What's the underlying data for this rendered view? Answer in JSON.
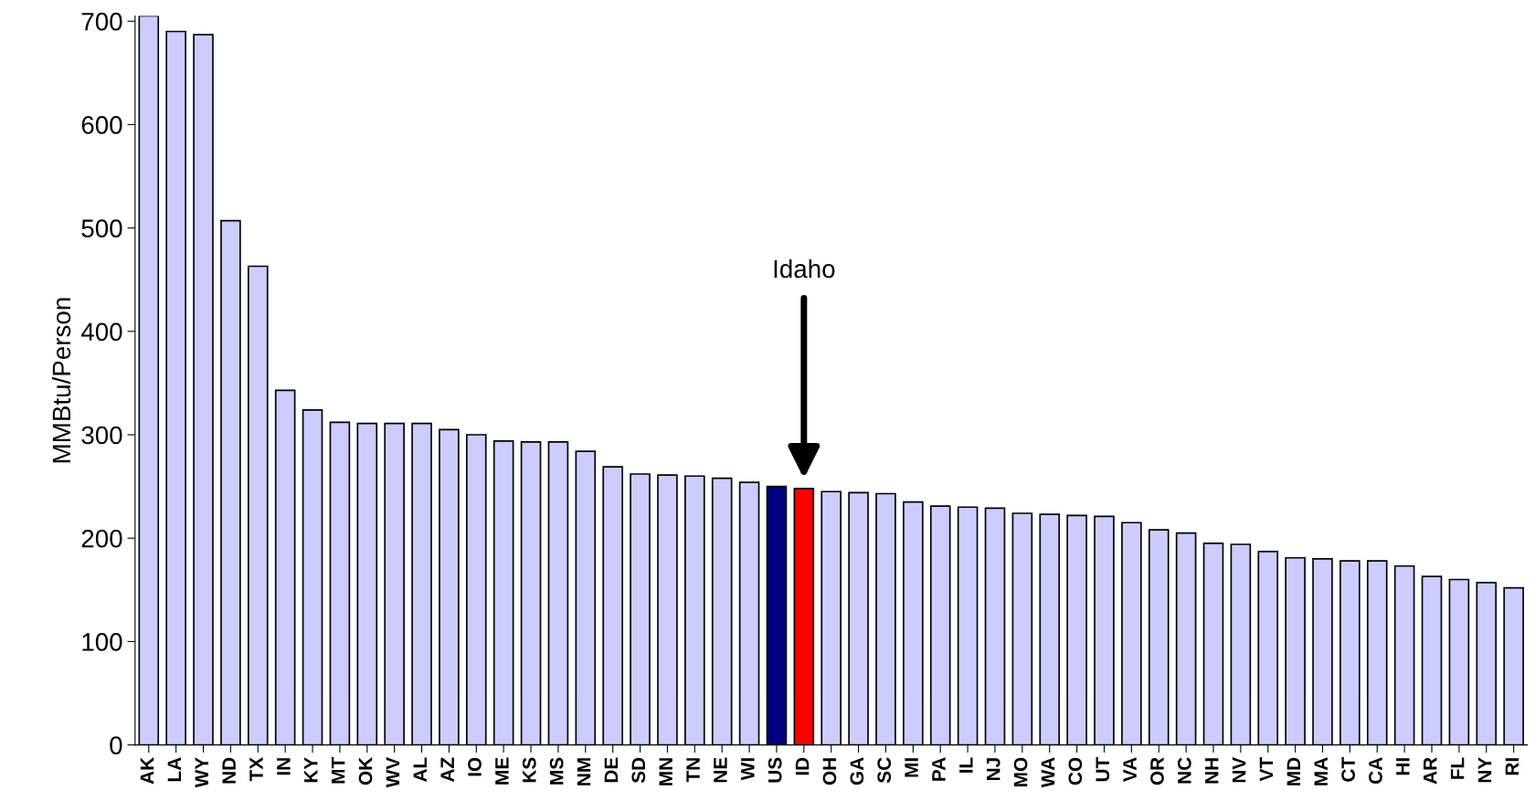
{
  "chart_data": {
    "type": "bar",
    "ylabel": "MMBtu/Person",
    "categories": [
      "AK",
      "LA",
      "WY",
      "ND",
      "TX",
      "IN",
      "KY",
      "MT",
      "OK",
      "WV",
      "AL",
      "AZ",
      "IO",
      "ME",
      "KS",
      "MS",
      "NM",
      "DE",
      "SD",
      "MN",
      "TN",
      "NE",
      "WI",
      "US",
      "ID",
      "OH",
      "GA",
      "SC",
      "MI",
      "PA",
      "IL",
      "NJ",
      "MO",
      "WA",
      "CO",
      "UT",
      "VA",
      "OR",
      "NC",
      "NH",
      "NV",
      "VT",
      "MD",
      "MA",
      "CT",
      "CA",
      "HI",
      "AR",
      "FL",
      "NY",
      "RI"
    ],
    "values": [
      705,
      690,
      687,
      507,
      463,
      343,
      324,
      312,
      311,
      311,
      311,
      305,
      300,
      294,
      293,
      293,
      284,
      269,
      262,
      261,
      260,
      258,
      254,
      250,
      248,
      245,
      244,
      243,
      235,
      231,
      230,
      229,
      224,
      223,
      222,
      221,
      215,
      208,
      205,
      195,
      194,
      187,
      181,
      180,
      178,
      178,
      173,
      163,
      160,
      157,
      152
    ],
    "colors": [
      "#ccccff",
      "#ccccff",
      "#ccccff",
      "#ccccff",
      "#ccccff",
      "#ccccff",
      "#ccccff",
      "#ccccff",
      "#ccccff",
      "#ccccff",
      "#ccccff",
      "#ccccff",
      "#ccccff",
      "#ccccff",
      "#ccccff",
      "#ccccff",
      "#ccccff",
      "#ccccff",
      "#ccccff",
      "#ccccff",
      "#ccccff",
      "#ccccff",
      "#ccccff",
      "#000080",
      "#ff0000",
      "#ccccff",
      "#ccccff",
      "#ccccff",
      "#ccccff",
      "#ccccff",
      "#ccccff",
      "#ccccff",
      "#ccccff",
      "#ccccff",
      "#ccccff",
      "#ccccff",
      "#ccccff",
      "#ccccff",
      "#ccccff",
      "#ccccff",
      "#ccccff",
      "#ccccff",
      "#ccccff",
      "#ccccff",
      "#ccccff",
      "#ccccff",
      "#ccccff",
      "#ccccff",
      "#ccccff",
      "#ccccff",
      "#ccccff"
    ],
    "ylim": [
      0,
      705
    ],
    "yticks": [
      0,
      100,
      200,
      300,
      400,
      500,
      600,
      700
    ],
    "grid": false,
    "annotations": [
      "Idaho"
    ]
  }
}
